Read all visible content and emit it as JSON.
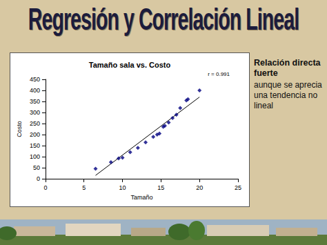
{
  "slide": {
    "title": "Regresión y Correlación Lineal",
    "side_heading": "Relación directa fuerte",
    "side_text": "aunque se aprecia una tendencia no lineal"
  },
  "chart_data": {
    "type": "scatter",
    "title": "Tamaño sala vs. Costo",
    "annotation": "r = 0.991",
    "x_label": "Tamaño",
    "y_label": "Costo",
    "x": [
      6.5,
      8.5,
      9.5,
      10,
      11,
      12,
      13,
      14,
      14.5,
      14.8,
      15.3,
      15.5,
      16,
      16.5,
      17,
      17.5,
      18.3,
      18.5,
      20
    ],
    "values": [
      45,
      75,
      92,
      95,
      120,
      140,
      165,
      190,
      200,
      205,
      235,
      240,
      255,
      275,
      290,
      320,
      355,
      360,
      400
    ],
    "trendline": {
      "x": [
        6.5,
        20
      ],
      "values": [
        15,
        370
      ]
    },
    "color": "#000080",
    "marker": "diamond",
    "xlim": [
      0,
      25
    ],
    "xticks": [
      0,
      5,
      10,
      15,
      20,
      25
    ],
    "ylim": [
      0,
      450
    ],
    "yticks": [
      0,
      50,
      100,
      150,
      200,
      250,
      300,
      350,
      400,
      450
    ],
    "grid": false
  }
}
